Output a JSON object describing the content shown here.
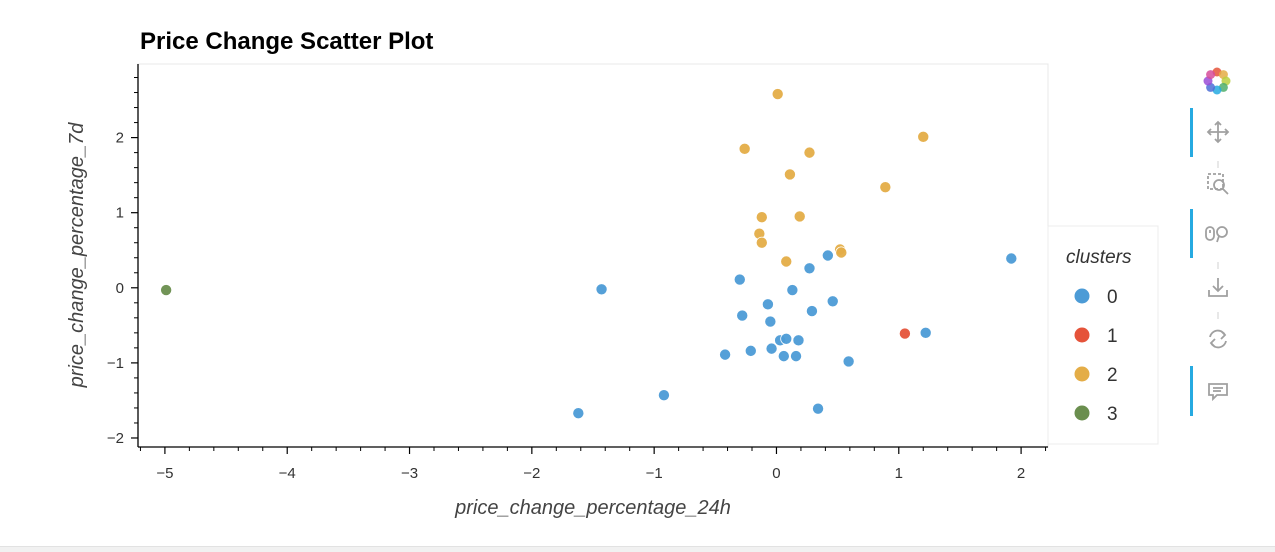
{
  "chart_data": {
    "type": "scatter",
    "title": "Price Change Scatter Plot",
    "xlabel": "price_change_percentage_24h",
    "ylabel": "price_change_percentage_7d",
    "xlim": [
      -5.22,
      2.22
    ],
    "ylim": [
      -2.12,
      2.98
    ],
    "x_ticks": [
      -5,
      -4,
      -3,
      -2,
      -1,
      0,
      1,
      2
    ],
    "y_ticks": [
      -2,
      -1,
      0,
      1,
      2
    ],
    "x_tick_labels": [
      "−5",
      "−4",
      "−3",
      "−2",
      "−1",
      "0",
      "1",
      "2"
    ],
    "y_tick_labels": [
      "−2",
      "−1",
      "0",
      "1",
      "2"
    ],
    "grid": false,
    "legend": {
      "title": "clusters",
      "position": "right",
      "entries": [
        "0",
        "1",
        "2",
        "3"
      ]
    },
    "colors": {
      "0": "#4c9bd6",
      "1": "#e5533a",
      "2": "#e4ad47",
      "3": "#6a8e4e"
    },
    "series": [
      {
        "name": "0",
        "points": [
          [
            -1.43,
            -0.02
          ],
          [
            -1.62,
            -1.67
          ],
          [
            -0.92,
            -1.43
          ],
          [
            -0.3,
            0.11
          ],
          [
            -0.28,
            -0.37
          ],
          [
            -0.42,
            -0.89
          ],
          [
            -0.21,
            -0.84
          ],
          [
            -0.07,
            -0.22
          ],
          [
            -0.05,
            -0.45
          ],
          [
            -0.04,
            -0.81
          ],
          [
            0.03,
            -0.7
          ],
          [
            0.06,
            -0.91
          ],
          [
            0.08,
            -0.68
          ],
          [
            0.13,
            -0.03
          ],
          [
            0.16,
            -0.91
          ],
          [
            0.18,
            -0.7
          ],
          [
            0.27,
            0.26
          ],
          [
            0.29,
            -0.31
          ],
          [
            0.34,
            -1.61
          ],
          [
            0.42,
            0.43
          ],
          [
            0.46,
            -0.18
          ],
          [
            0.59,
            -0.98
          ],
          [
            1.22,
            -0.6
          ],
          [
            1.92,
            0.39
          ]
        ]
      },
      {
        "name": "1",
        "points": [
          [
            1.05,
            -0.61
          ]
        ]
      },
      {
        "name": "2",
        "points": [
          [
            0.01,
            2.58
          ],
          [
            -0.26,
            1.85
          ],
          [
            1.2,
            2.01
          ],
          [
            0.27,
            1.8
          ],
          [
            0.11,
            1.51
          ],
          [
            0.89,
            1.34
          ],
          [
            -0.12,
            0.94
          ],
          [
            0.19,
            0.95
          ],
          [
            -0.14,
            0.72
          ],
          [
            -0.12,
            0.6
          ],
          [
            0.52,
            0.51
          ],
          [
            0.53,
            0.47
          ],
          [
            0.08,
            0.35
          ]
        ]
      },
      {
        "name": "3",
        "points": [
          [
            -4.99,
            -0.03
          ]
        ]
      }
    ]
  },
  "toolbar": {
    "logo": "bokeh-logo-icon",
    "tools": [
      {
        "name": "pan-icon",
        "active": true
      },
      {
        "name": "box-zoom-icon",
        "active": false
      },
      {
        "name": "wheel-zoom-icon",
        "active": true
      },
      {
        "name": "save-icon",
        "active": false
      },
      {
        "name": "reset-icon",
        "active": false
      },
      {
        "name": "hover-icon",
        "active": true
      }
    ],
    "active_color": "#26aae1",
    "icon_color": "#a0a0a0"
  }
}
